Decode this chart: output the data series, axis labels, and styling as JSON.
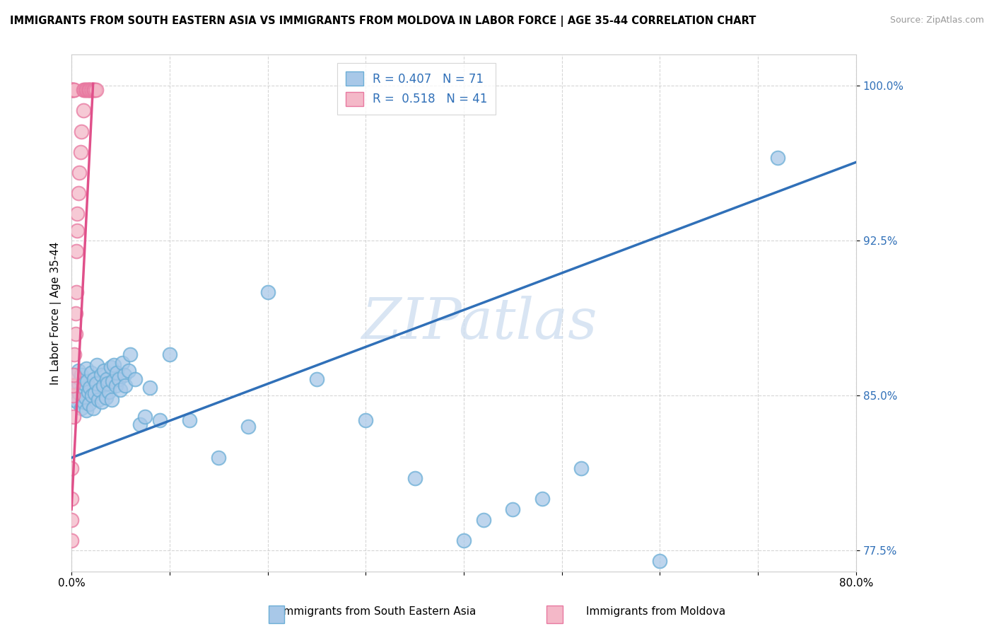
{
  "title": "IMMIGRANTS FROM SOUTH EASTERN ASIA VS IMMIGRANTS FROM MOLDOVA IN LABOR FORCE | AGE 35-44 CORRELATION CHART",
  "source": "Source: ZipAtlas.com",
  "xlabel_blue": "Immigrants from South Eastern Asia",
  "xlabel_pink": "Immigrants from Moldova",
  "ylabel": "In Labor Force | Age 35-44",
  "xlim": [
    0.0,
    0.8
  ],
  "ylim": [
    0.765,
    1.015
  ],
  "ytick_positions": [
    0.775,
    0.85,
    0.925,
    1.0
  ],
  "ytick_labels": [
    "77.5%",
    "85.0%",
    "92.5%",
    "100.0%"
  ],
  "xtick_positions": [
    0.0,
    0.1,
    0.2,
    0.3,
    0.4,
    0.5,
    0.6,
    0.7,
    0.8
  ],
  "xtick_labels": [
    "0.0%",
    "",
    "",
    "",
    "",
    "",
    "",
    "",
    "80.0%"
  ],
  "R_blue": 0.407,
  "N_blue": 71,
  "R_pink": 0.518,
  "N_pink": 41,
  "blue_color": "#a8c8e8",
  "blue_edge_color": "#6baed6",
  "pink_color": "#f4b8c8",
  "pink_edge_color": "#e878a0",
  "blue_line_color": "#3070b8",
  "pink_line_color": "#e0508a",
  "legend_blue_fill": "#a8c8e8",
  "legend_pink_fill": "#f4b8c8",
  "watermark": "ZIPatlas",
  "blue_scatter_x": [
    0.002,
    0.003,
    0.004,
    0.005,
    0.006,
    0.007,
    0.007,
    0.008,
    0.009,
    0.01,
    0.01,
    0.011,
    0.012,
    0.013,
    0.014,
    0.015,
    0.015,
    0.016,
    0.017,
    0.018,
    0.019,
    0.02,
    0.021,
    0.022,
    0.023,
    0.024,
    0.025,
    0.026,
    0.027,
    0.028,
    0.03,
    0.031,
    0.032,
    0.033,
    0.035,
    0.036,
    0.037,
    0.038,
    0.04,
    0.041,
    0.042,
    0.043,
    0.045,
    0.046,
    0.048,
    0.05,
    0.052,
    0.054,
    0.055,
    0.058,
    0.06,
    0.065,
    0.07,
    0.075,
    0.08,
    0.09,
    0.1,
    0.12,
    0.15,
    0.18,
    0.2,
    0.25,
    0.3,
    0.35,
    0.4,
    0.42,
    0.45,
    0.48,
    0.52,
    0.6,
    0.72
  ],
  "blue_scatter_y": [
    0.855,
    0.848,
    0.86,
    0.853,
    0.847,
    0.856,
    0.862,
    0.851,
    0.858,
    0.844,
    0.86,
    0.853,
    0.847,
    0.856,
    0.849,
    0.863,
    0.843,
    0.857,
    0.852,
    0.846,
    0.854,
    0.861,
    0.85,
    0.844,
    0.858,
    0.851,
    0.856,
    0.865,
    0.848,
    0.853,
    0.86,
    0.847,
    0.855,
    0.862,
    0.849,
    0.858,
    0.856,
    0.852,
    0.864,
    0.848,
    0.857,
    0.865,
    0.855,
    0.861,
    0.858,
    0.853,
    0.866,
    0.86,
    0.855,
    0.862,
    0.87,
    0.858,
    0.836,
    0.84,
    0.854,
    0.838,
    0.87,
    0.838,
    0.82,
    0.835,
    0.9,
    0.858,
    0.838,
    0.81,
    0.78,
    0.79,
    0.795,
    0.8,
    0.815,
    0.77,
    0.965
  ],
  "pink_scatter_x": [
    0.0,
    0.0,
    0.0,
    0.0,
    0.0,
    0.0,
    0.001,
    0.001,
    0.001,
    0.001,
    0.002,
    0.002,
    0.002,
    0.003,
    0.003,
    0.004,
    0.004,
    0.005,
    0.005,
    0.006,
    0.006,
    0.007,
    0.008,
    0.009,
    0.01,
    0.012,
    0.012,
    0.013,
    0.014,
    0.015,
    0.016,
    0.017,
    0.018,
    0.018,
    0.019,
    0.02,
    0.021,
    0.022,
    0.023,
    0.024,
    0.025
  ],
  "pink_scatter_y": [
    0.78,
    0.79,
    0.8,
    0.815,
    0.998,
    0.998,
    0.998,
    0.998,
    0.85,
    0.855,
    0.998,
    0.84,
    0.86,
    0.87,
    0.998,
    0.88,
    0.89,
    0.9,
    0.92,
    0.93,
    0.938,
    0.948,
    0.958,
    0.968,
    0.978,
    0.988,
    0.998,
    0.998,
    0.998,
    0.998,
    0.998,
    0.998,
    0.998,
    0.998,
    0.998,
    0.998,
    0.998,
    0.998,
    0.998,
    0.998,
    0.998
  ],
  "blue_trend_x": [
    0.0,
    0.8
  ],
  "blue_trend_y": [
    0.82,
    0.963
  ],
  "pink_trend_x": [
    0.0,
    0.022
  ],
  "pink_trend_y": [
    0.795,
    1.001
  ]
}
